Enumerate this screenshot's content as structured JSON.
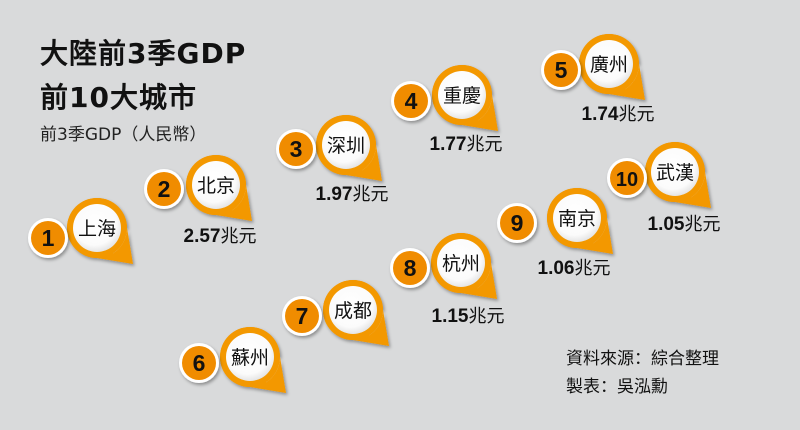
{
  "header": {
    "title_line1": "大陸前3季GDP",
    "title_line2": "前10大城市",
    "subtitle": "前3季GDP（人民幣）"
  },
  "footer": {
    "source": "資料來源：綜合整理",
    "author": "製表：吳泓勳"
  },
  "colors": {
    "background": "#d9dadb",
    "pin_orange": "#f39800",
    "rank_badge": "#f08c00",
    "text": "#111111"
  },
  "chart_data": {
    "type": "bar",
    "title": "大陸前3季GDP 前10大城市",
    "subtitle": "前3季GDP（人民幣）",
    "unit": "兆元",
    "categories": [
      "上海",
      "北京",
      "深圳",
      "重慶",
      "廣州",
      "蘇州",
      "成都",
      "杭州",
      "南京",
      "武漢"
    ],
    "ranks": [
      1,
      2,
      3,
      4,
      5,
      6,
      7,
      8,
      9,
      10
    ],
    "values": [
      null,
      2.57,
      1.97,
      1.77,
      1.74,
      null,
      null,
      1.15,
      1.06,
      1.05
    ],
    "value_labels": [
      "",
      "2.57兆元",
      "1.97兆元",
      "1.77兆元",
      "1.74兆元",
      "",
      "",
      "1.15兆元",
      "1.06兆元",
      "1.05兆元"
    ]
  }
}
